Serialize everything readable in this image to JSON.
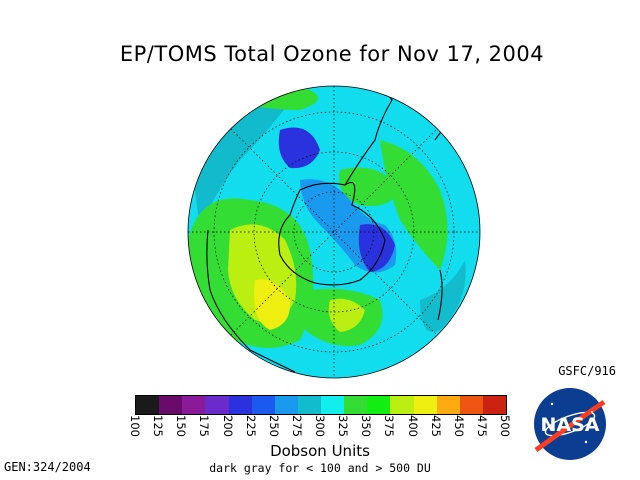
{
  "title": "EP/TOMS Total Ozone for Nov 17, 2004",
  "credit": "GSFC/916",
  "generation": "GEN:324/2004",
  "legend": {
    "ticks": [
      "100",
      "125",
      "150",
      "175",
      "200",
      "225",
      "250",
      "275",
      "300",
      "325",
      "350",
      "375",
      "400",
      "425",
      "450",
      "475",
      "500"
    ],
    "colors": [
      "#1a1a1a",
      "#6a0a6a",
      "#8a1a9a",
      "#6a2acc",
      "#2a32dd",
      "#1a5aee",
      "#1a9aee",
      "#12bccc",
      "#11eeee",
      "#33dd33",
      "#11ee11",
      "#bbee11",
      "#eeee11",
      "#ffaa11",
      "#ee5511",
      "#cc2211",
      "#881111",
      "#441111"
    ],
    "units": "Dobson Units",
    "note": "dark gray for < 100 and > 500 DU"
  },
  "logo": {
    "icon": "nasa-meatball-logo",
    "text": "NASA"
  }
}
